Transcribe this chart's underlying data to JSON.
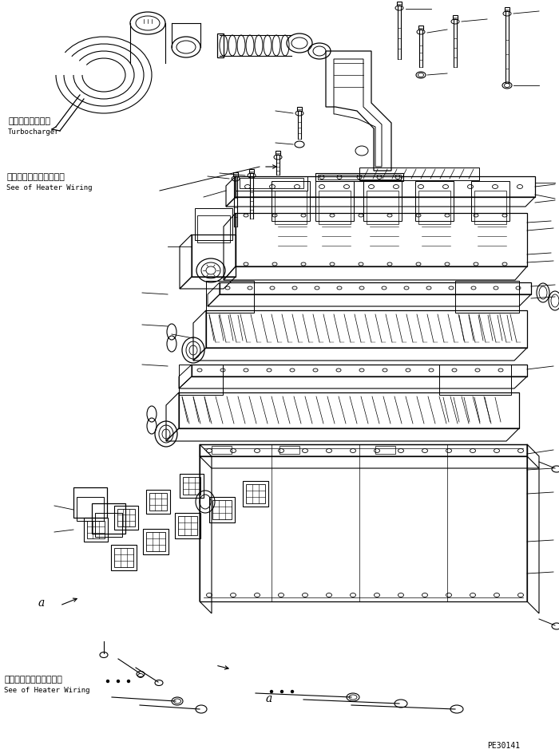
{
  "bg_color": "#ffffff",
  "line_color": "#000000",
  "fig_width": 7.0,
  "fig_height": 9.45,
  "dpi": 100,
  "label_turbocharger_jp": "ターボチャージャ",
  "label_turbocharger_en": "Turbocharger",
  "label_heater_wiring_jp_top": "ヒータワイヤリング参照",
  "label_heater_wiring_en_top": "See of Heater Wiring",
  "label_heater_wiring_jp_bot": "ヒータワイヤリング参照",
  "label_heater_wiring_en_bot": "See of Heater Wiring",
  "label_a_left": "a",
  "label_a_bottom": "a",
  "label_part_number": "PE30141",
  "font_size_jp": 8,
  "font_size_en": 6.5,
  "font_size_label": 10,
  "font_size_partnum": 7
}
